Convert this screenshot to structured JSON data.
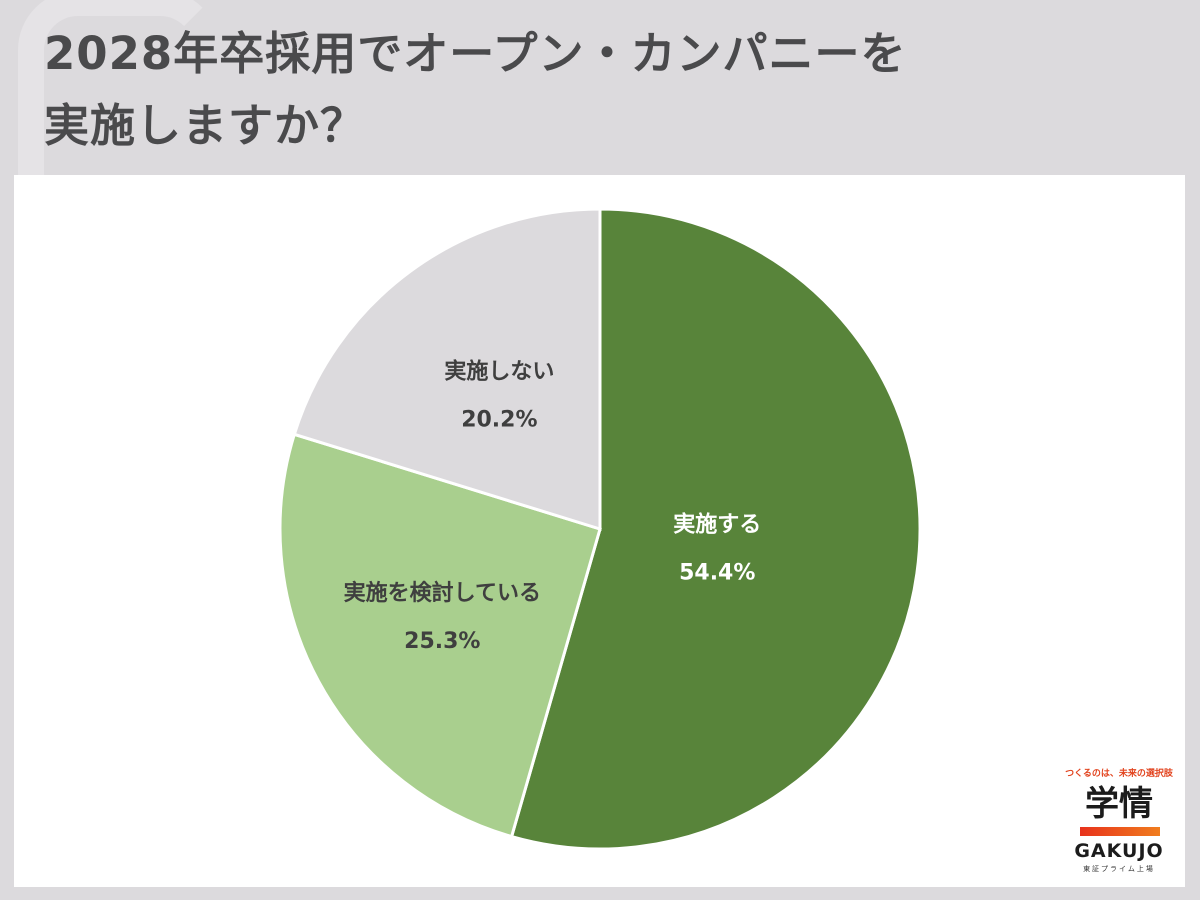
{
  "title": {
    "line1": "2028年卒採用でオープン・カンパニーを",
    "line2": "実施しますか？"
  },
  "chart_data": {
    "type": "pie",
    "title": "2028年卒採用でオープン・カンパニーを実施しますか？",
    "slices": [
      {
        "label": "実施する",
        "value": 54.4,
        "display": "54.4%",
        "color": "#58843a",
        "text_color": "#ffffff"
      },
      {
        "label": "実施を検討している",
        "value": 25.3,
        "display": "25.3%",
        "color": "#a9cf8e",
        "text_color": "#3f3f3f"
      },
      {
        "label": "実施しない",
        "value": 20.2,
        "display": "20.2%",
        "color": "#dcdadd",
        "text_color": "#3f3f3f"
      }
    ],
    "start_angle": "12 o'clock",
    "direction": "clockwise",
    "legend": "none"
  },
  "logo": {
    "tagline": "つくるのは、未来の選択肢",
    "mark": "学情",
    "name": "GAKUJO",
    "listed": "東証プライム上場"
  }
}
